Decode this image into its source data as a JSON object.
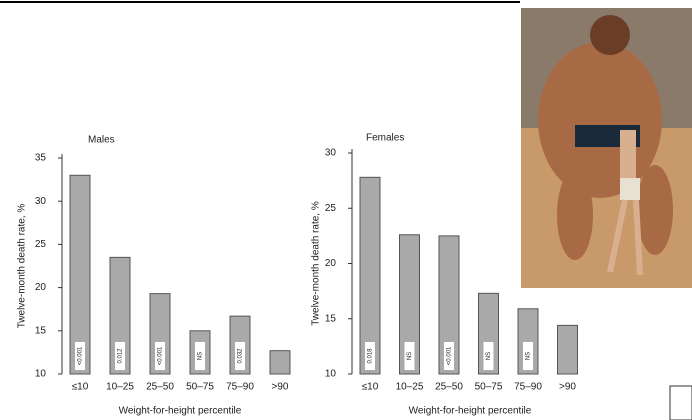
{
  "chart_data": [
    {
      "type": "bar",
      "title": "Males",
      "y_label": "Twelve-month death rate, %",
      "x_label": "Weight-for-height percentile",
      "categories": [
        "≤10",
        "10–25",
        "25–50",
        "50–75",
        "75–90",
        ">90"
      ],
      "values": [
        33,
        23.5,
        19.3,
        15,
        16.7,
        12.7
      ],
      "bar_notes": [
        "<0.001",
        "0.012",
        "<0.001",
        "NS",
        "0.032",
        null
      ],
      "color": "#a9a9a9",
      "ylim": [
        10,
        35
      ],
      "yticks": [
        10,
        15,
        20,
        25,
        30,
        35
      ],
      "grid": false
    },
    {
      "type": "bar",
      "title": "Females",
      "y_label": "Twelve-month death rate, %",
      "x_label": "Weight-for-height percentile",
      "categories": [
        "≤10",
        "10–25",
        "25–50",
        "50–75",
        "75–90",
        ">90"
      ],
      "values": [
        27.8,
        22.6,
        22.5,
        17.3,
        15.9,
        14.4
      ],
      "bar_notes": [
        "0.018",
        "NS",
        "<0.001",
        "NS",
        "NS",
        null
      ],
      "color": "#a9a9a9",
      "ylim": [
        10,
        30
      ],
      "yticks": [
        10,
        15,
        20,
        25,
        30
      ],
      "grid": false
    }
  ]
}
